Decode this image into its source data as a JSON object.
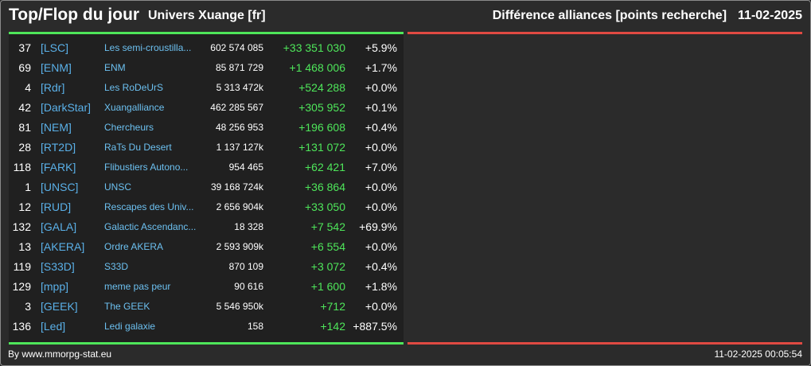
{
  "header": {
    "title": "Top/Flop du jour",
    "universe": "Univers Xuange [fr]",
    "diff_label": "Différence alliances [points recherche]",
    "date": "11-02-2025"
  },
  "colors": {
    "positive": "#4ee65a",
    "negative": "#e04a42",
    "tag": "#5ab0e8"
  },
  "rows": [
    {
      "rank": "37",
      "tag": "[LSC]",
      "name": "Les semi-croustilla...",
      "points": "602 574 085",
      "diff": "+33 351 030",
      "pct": "+5.9%"
    },
    {
      "rank": "69",
      "tag": "[ENM]",
      "name": "ENM",
      "points": "85 871 729",
      "diff": "+1 468 006",
      "pct": "+1.7%"
    },
    {
      "rank": "4",
      "tag": "[Rdr]",
      "name": "Les RoDeUrS",
      "points": "5 313 472k",
      "diff": "+524 288",
      "pct": "+0.0%"
    },
    {
      "rank": "42",
      "tag": "[DarkStar]",
      "name": "Xuangalliance",
      "points": "462 285 567",
      "diff": "+305 952",
      "pct": "+0.1%"
    },
    {
      "rank": "81",
      "tag": "[NEM]",
      "name": "Chercheurs",
      "points": "48 256 953",
      "diff": "+196 608",
      "pct": "+0.4%"
    },
    {
      "rank": "28",
      "tag": "[RT2D]",
      "name": "RaTs Du Desert",
      "points": "1 137 127k",
      "diff": "+131 072",
      "pct": "+0.0%"
    },
    {
      "rank": "118",
      "tag": "[FARK]",
      "name": "Flibustiers Autono...",
      "points": "954 465",
      "diff": "+62 421",
      "pct": "+7.0%"
    },
    {
      "rank": "1",
      "tag": "[UNSC]",
      "name": "UNSC",
      "points": "39 168 724k",
      "diff": "+36 864",
      "pct": "+0.0%"
    },
    {
      "rank": "12",
      "tag": "[RUD]",
      "name": "Rescapes des Univ...",
      "points": "2 656 904k",
      "diff": "+33 050",
      "pct": "+0.0%"
    },
    {
      "rank": "132",
      "tag": "[GALA]",
      "name": "Galactic Ascendanc...",
      "points": "18 328",
      "diff": "+7 542",
      "pct": "+69.9%"
    },
    {
      "rank": "13",
      "tag": "[AKERA]",
      "name": "Ordre AKERA",
      "points": "2 593 909k",
      "diff": "+6 554",
      "pct": "+0.0%"
    },
    {
      "rank": "119",
      "tag": "[S33D]",
      "name": "S33D",
      "points": "870 109",
      "diff": "+3 072",
      "pct": "+0.4%"
    },
    {
      "rank": "129",
      "tag": "[mpp]",
      "name": "meme pas peur",
      "points": "90 616",
      "diff": "+1 600",
      "pct": "+1.8%"
    },
    {
      "rank": "3",
      "tag": "[GEEK]",
      "name": "The GEEK",
      "points": "5 546 950k",
      "diff": "+712",
      "pct": "+0.0%"
    },
    {
      "rank": "136",
      "tag": "[Led]",
      "name": "Ledi galaxie",
      "points": "158",
      "diff": "+142",
      "pct": "+887.5%"
    }
  ],
  "footer": {
    "source": "By www.mmorpg-stat.eu",
    "timestamp": "11-02-2025 00:05:54"
  }
}
